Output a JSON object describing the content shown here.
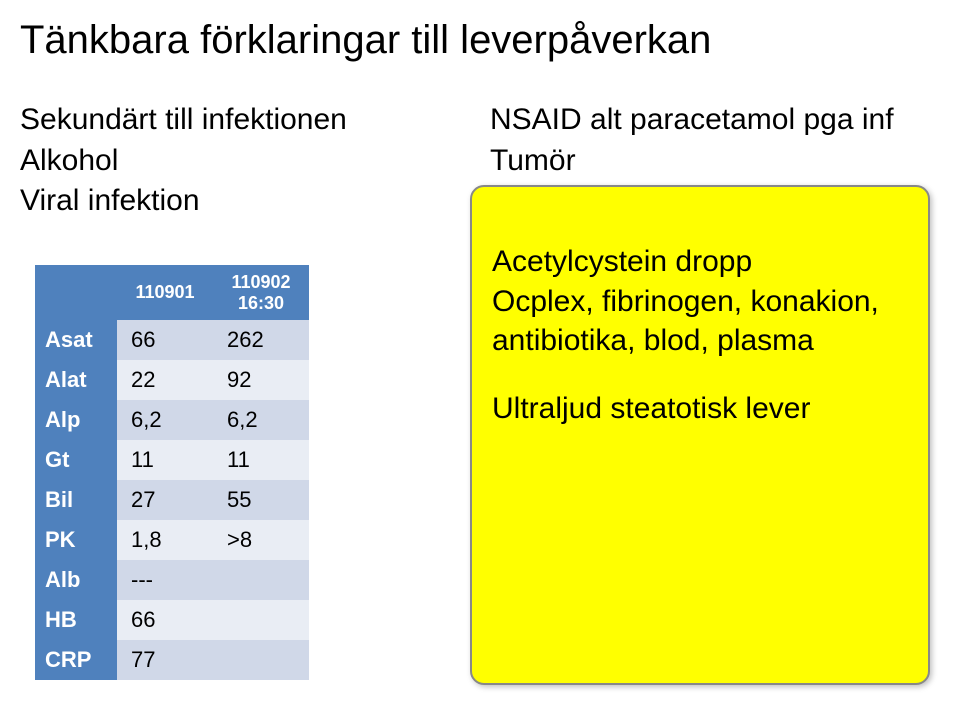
{
  "title": "Tänkbara förklaringar till leverpåverkan",
  "left_causes": {
    "line1": "Sekundärt till infektionen",
    "line2": "Alkohol",
    "line3": "Viral infektion"
  },
  "right_causes": {
    "line1": "NSAID alt paracetamol pga inf",
    "line2": "Tumör"
  },
  "highlight": {
    "line1": "Acetylcystein dropp",
    "line2": "Ocplex, fibrinogen, konakion,",
    "line3": "antibiotika, blod, plasma",
    "line4": "Ultraljud steatotisk lever",
    "bg_color": "#ffff00",
    "border_color": "#888888"
  },
  "lab_table": {
    "col_headers": {
      "c1": "110901",
      "c2_line1": "110902",
      "c2_line2": "16:30"
    },
    "rows": [
      {
        "label": "Asat",
        "v1": "66",
        "v2": "262"
      },
      {
        "label": "Alat",
        "v1": "22",
        "v2": "92"
      },
      {
        "label": "Alp",
        "v1": "6,2",
        "v2": "6,2"
      },
      {
        "label": "Gt",
        "v1": "11",
        "v2": "11"
      },
      {
        "label": "Bil",
        "v1": "27",
        "v2": "55"
      },
      {
        "label": "PK",
        "v1": "1,8",
        "v2": ">8"
      },
      {
        "label": "Alb",
        "v1": "---",
        "v2": ""
      },
      {
        "label": "HB",
        "v1": "66",
        "v2": ""
      },
      {
        "label": "CRP",
        "v1": "77",
        "v2": ""
      }
    ],
    "header_bg": "#4f81bd",
    "header_fg": "#ffffff",
    "row_odd_bg": "#d0d8e8",
    "row_even_bg": "#e9edf4"
  }
}
